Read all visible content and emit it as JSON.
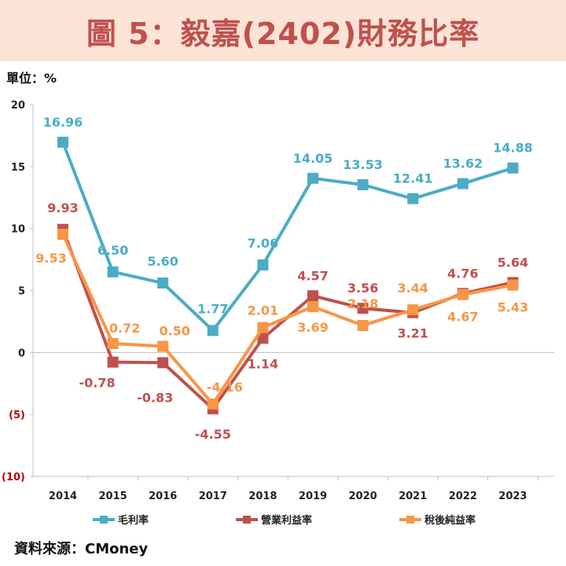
{
  "title": "圖 5：毅嘉(2402)財務比率",
  "unit": "單位：%",
  "source": "資料來源：CMoney",
  "chart_data": {
    "type": "line",
    "title": "圖 5：毅嘉(2402)財務比率",
    "ylabel": "單位：%",
    "ylim": [
      -10,
      20
    ],
    "yticks": [
      20,
      15,
      10,
      5,
      0,
      -5,
      -10
    ],
    "ytick_labels": [
      "20",
      "15",
      "10",
      "5",
      "0",
      "(5)",
      "(10)"
    ],
    "categories": [
      "2014",
      "2015",
      "2016",
      "2017",
      "2018",
      "2019",
      "2020",
      "2021",
      "2022",
      "2023"
    ],
    "legend_position": "bottom",
    "series": [
      {
        "name": "毛利率",
        "color": "#4bacc6",
        "label_color": "#4bacc6",
        "values": [
          16.96,
          6.5,
          5.6,
          1.77,
          7.06,
          14.05,
          13.53,
          12.41,
          13.62,
          14.88
        ],
        "labels": [
          "16.96",
          "6.50",
          "5.60",
          "1.77",
          "7.06",
          "14.05",
          "13.53",
          "12.41",
          "13.62",
          "14.88"
        ]
      },
      {
        "name": "營業利益率",
        "color": "#c0504d",
        "label_color": "#c0504d",
        "values": [
          9.93,
          -0.78,
          -0.83,
          -4.55,
          1.14,
          4.57,
          3.56,
          3.21,
          4.76,
          5.64
        ],
        "labels": [
          "9.93",
          "-0.78",
          "-0.83",
          "-4.55",
          "1.14",
          "4.57",
          "3.56",
          "3.21",
          "4.76",
          "5.64"
        ]
      },
      {
        "name": "稅後純益率",
        "color": "#f79646",
        "label_color": "#f79646",
        "values": [
          9.53,
          0.72,
          0.5,
          -4.16,
          2.01,
          3.69,
          2.18,
          3.44,
          4.67,
          5.43
        ],
        "labels": [
          "9.53",
          "0.72",
          "0.50",
          "-4.16",
          "2.01",
          "3.69",
          "2.18",
          "3.44",
          "4.67",
          "5.43"
        ]
      }
    ]
  }
}
